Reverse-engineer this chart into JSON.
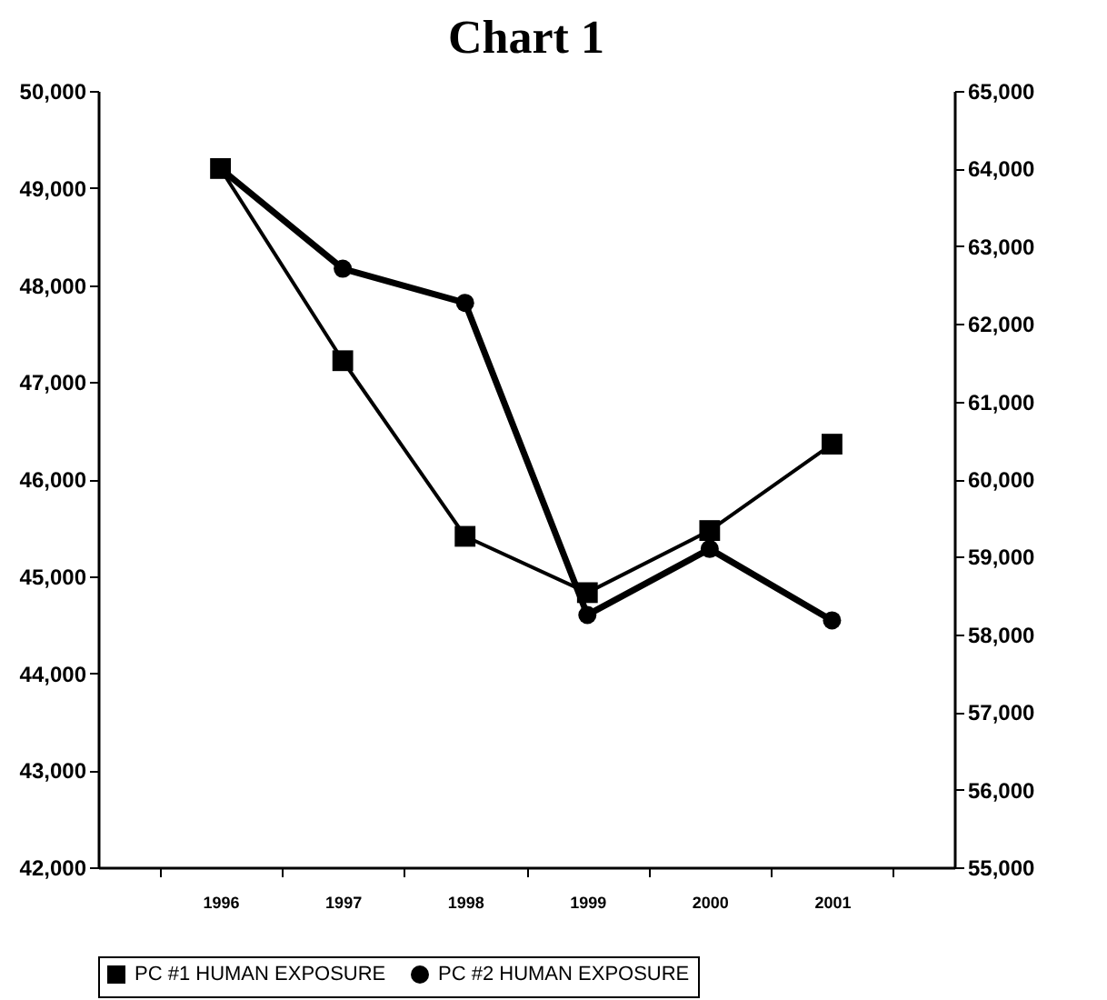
{
  "chart_data": {
    "type": "line",
    "title": "Chart 1",
    "categories": [
      "1996",
      "1997",
      "1998",
      "1999",
      "2000",
      "2001"
    ],
    "series": [
      {
        "name": "PC #1 HUMAN EXPOSURE",
        "color": "#000000",
        "marker": "square",
        "values": [
          49200,
          47220,
          45410,
          44830,
          45470,
          46360
        ]
      },
      {
        "name": "PC #2 HUMAN EXPOSURE",
        "color": "#000000",
        "marker": "circle",
        "axis": "y2",
        "values": [
          64000,
          62710,
          62270,
          58250,
          59100,
          58180
        ]
      }
    ],
    "ylim": [
      42000,
      50000
    ],
    "yticks": [
      {
        "value": 42000,
        "label": "42,000"
      },
      {
        "value": 43000,
        "label": "43,000"
      },
      {
        "value": 44000,
        "label": "44,000"
      },
      {
        "value": 45000,
        "label": "45,000"
      },
      {
        "value": 46000,
        "label": "46,000"
      },
      {
        "value": 47000,
        "label": "47,000"
      },
      {
        "value": 48000,
        "label": "48,000"
      },
      {
        "value": 49000,
        "label": "49,000"
      },
      {
        "value": 50000,
        "label": "50,000"
      }
    ],
    "y2lim": [
      55000,
      65000
    ],
    "y2ticks": [
      {
        "value": 55000,
        "label": "55,000"
      },
      {
        "value": 56000,
        "label": "56,000"
      },
      {
        "value": 57000,
        "label": "57,000"
      },
      {
        "value": 58000,
        "label": "58,000"
      },
      {
        "value": 59000,
        "label": "59,000"
      },
      {
        "value": 60000,
        "label": "60,000"
      },
      {
        "value": 61000,
        "label": "61,000"
      },
      {
        "value": 62000,
        "label": "62,000"
      },
      {
        "value": 63000,
        "label": "63,000"
      },
      {
        "value": 64000,
        "label": "64,000"
      },
      {
        "value": 65000,
        "label": "65,000"
      }
    ],
    "grid": false,
    "legend": "bottom",
    "line_style": "solid"
  }
}
